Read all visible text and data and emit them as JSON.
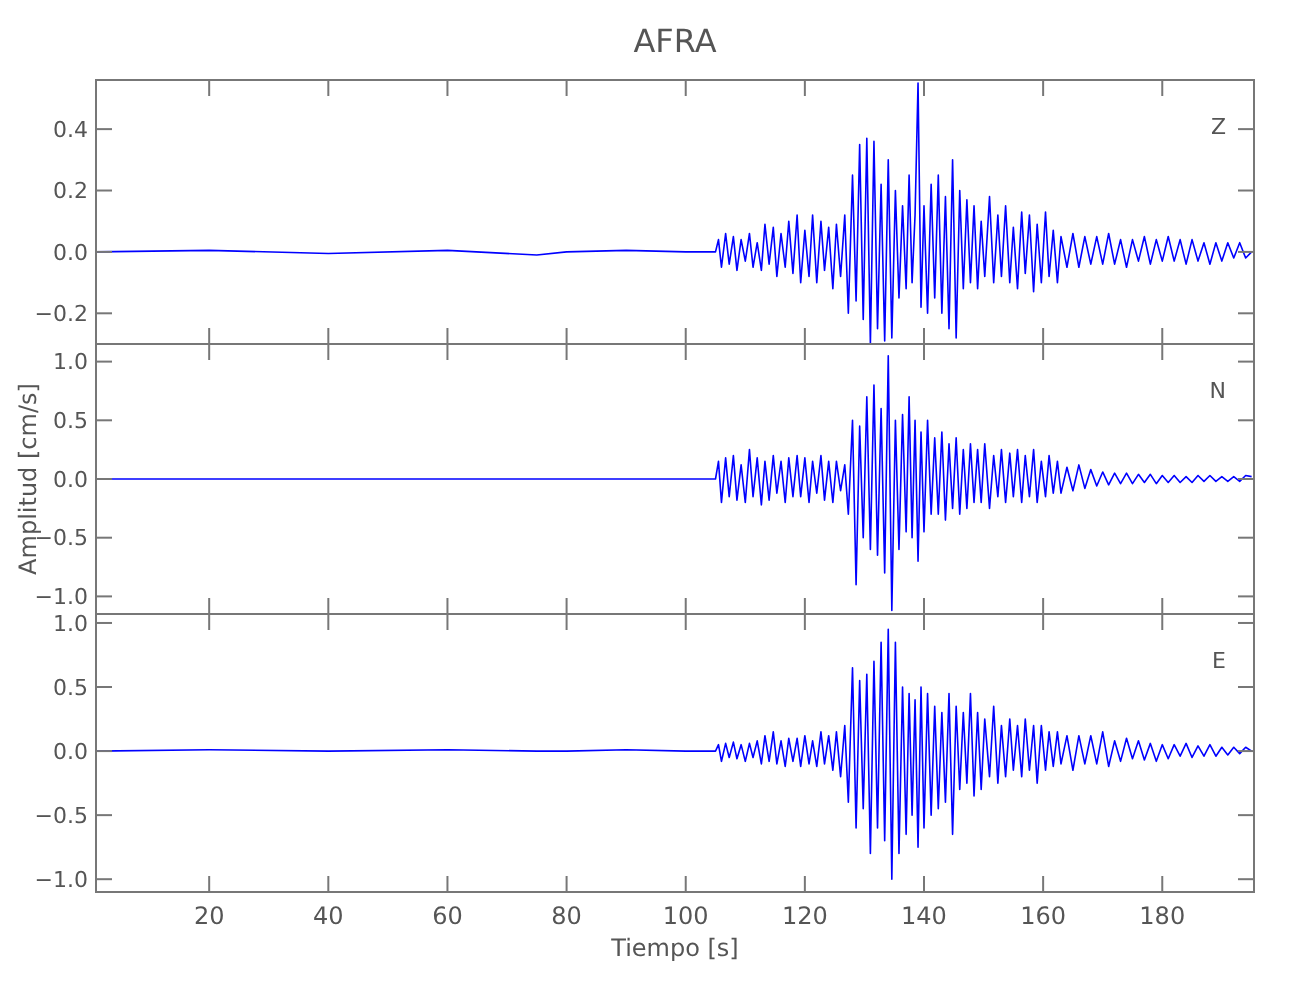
{
  "chart_data": [
    {
      "type": "line",
      "title": "AFRA",
      "annotations": [
        "Z"
      ],
      "tick_labels": "y",
      "grid": false,
      "xlim": [
        1,
        195.4
      ],
      "xticks": [
        20,
        40,
        60,
        80,
        100,
        120,
        140,
        160,
        180
      ],
      "ylim": [
        -0.3,
        0.56
      ],
      "yticks": [
        {
          "value": -0.2,
          "label": "−0.2"
        },
        {
          "value": 0,
          "label": "0.0"
        },
        {
          "value": 0.2,
          "label": "0.2"
        },
        {
          "value": 0.4,
          "label": "0.4"
        }
      ],
      "x": [
        1,
        20,
        40,
        60,
        75,
        80,
        90,
        100,
        105,
        105.5,
        106,
        106.7,
        107.3,
        108,
        108.6,
        109.3,
        110,
        110.7,
        111.3,
        112,
        112.7,
        113.3,
        114,
        114.7,
        115.3,
        116,
        116.7,
        117.3,
        118,
        118.7,
        119.3,
        120,
        120.7,
        121.3,
        122,
        122.7,
        123.3,
        124,
        124.7,
        125.3,
        126,
        126.7,
        127.3,
        128,
        128.6,
        129.2,
        129.8,
        130.4,
        131,
        131.6,
        132.2,
        132.8,
        133.4,
        134,
        134.6,
        135.2,
        135.8,
        136.4,
        137,
        137.5,
        138,
        138.5,
        139,
        139.5,
        140,
        140.6,
        141.2,
        141.8,
        142.4,
        143,
        143.6,
        144.2,
        144.8,
        145.4,
        146,
        146.6,
        147.2,
        147.8,
        148.4,
        149,
        149.6,
        150.2,
        151,
        151.7,
        152.4,
        153,
        153.7,
        154.4,
        155,
        155.7,
        156.4,
        157,
        157.7,
        158.4,
        159,
        159.7,
        160.4,
        161,
        161.7,
        162.4,
        163,
        164,
        165,
        166,
        167,
        168,
        169,
        170,
        171,
        172,
        173,
        174,
        175,
        176,
        177,
        178,
        179,
        180,
        181,
        182,
        183,
        184,
        185,
        186,
        187,
        188,
        189,
        190,
        191,
        192,
        193,
        194,
        195
      ],
      "series": [
        {
          "color": "#0000ff",
          "values": [
            0,
            0.005,
            -0.005,
            0.005,
            -0.01,
            0,
            0.005,
            0,
            0,
            0.04,
            -0.05,
            0.06,
            -0.04,
            0.05,
            -0.06,
            0.04,
            -0.03,
            0.06,
            -0.05,
            0.03,
            -0.06,
            0.09,
            -0.04,
            0.08,
            -0.08,
            0.06,
            -0.05,
            0.1,
            -0.07,
            0.12,
            -0.1,
            0.07,
            -0.08,
            0.12,
            -0.1,
            0.1,
            -0.06,
            0.08,
            -0.12,
            0.09,
            -0.08,
            0.12,
            -0.2,
            0.25,
            -0.16,
            0.35,
            -0.22,
            0.37,
            -0.3,
            0.36,
            -0.25,
            0.22,
            -0.29,
            0.3,
            -0.28,
            0.2,
            -0.15,
            0.15,
            -0.12,
            0.25,
            -0.1,
            0.12,
            0.55,
            -0.18,
            0.15,
            -0.2,
            0.22,
            -0.15,
            0.25,
            -0.2,
            0.18,
            -0.25,
            0.3,
            -0.28,
            0.2,
            -0.12,
            0.17,
            -0.1,
            0.15,
            -0.12,
            0.1,
            -0.08,
            0.18,
            -0.1,
            0.12,
            -0.08,
            0.15,
            -0.1,
            0.08,
            -0.12,
            0.13,
            -0.07,
            0.12,
            -0.13,
            0.09,
            -0.1,
            0.13,
            -0.08,
            0.07,
            -0.1,
            0.05,
            -0.05,
            0.06,
            -0.05,
            0.05,
            -0.04,
            0.05,
            -0.04,
            0.06,
            -0.04,
            0.04,
            -0.05,
            0.04,
            -0.03,
            0.05,
            -0.04,
            0.04,
            -0.03,
            0.05,
            -0.03,
            0.04,
            -0.04,
            0.04,
            -0.03,
            0.03,
            -0.04,
            0.03,
            -0.03,
            0.03,
            -0.02,
            0.03,
            -0.02,
            0
          ]
        }
      ]
    },
    {
      "type": "line",
      "ylabel": "Amplitud [cm/s]",
      "annotations": [
        "N"
      ],
      "tick_labels": "y",
      "grid": false,
      "xlim": [
        1,
        195.4
      ],
      "xticks": [
        20,
        40,
        60,
        80,
        100,
        120,
        140,
        160,
        180
      ],
      "ylim": [
        -1.15,
        1.15
      ],
      "yticks": [
        {
          "value": -1,
          "label": "−1.0"
        },
        {
          "value": -0.5,
          "label": "−0.5"
        },
        {
          "value": 0,
          "label": "0.0"
        },
        {
          "value": 0.5,
          "label": "0.5"
        },
        {
          "value": 1,
          "label": "1.0"
        }
      ],
      "x": [
        1,
        20,
        40,
        60,
        75,
        80,
        90,
        100,
        105,
        105.5,
        106,
        106.7,
        107.3,
        108,
        108.6,
        109.3,
        110,
        110.7,
        111.3,
        112,
        112.7,
        113.3,
        114,
        114.7,
        115.3,
        116,
        116.7,
        117.3,
        118,
        118.7,
        119.3,
        120,
        120.7,
        121.3,
        122,
        122.7,
        123.3,
        124,
        124.7,
        125.3,
        126,
        126.7,
        127.3,
        128,
        128.6,
        129.2,
        129.8,
        130.4,
        131,
        131.6,
        132.2,
        132.8,
        133.4,
        134,
        134.6,
        135.2,
        135.8,
        136.4,
        137,
        137.5,
        138,
        138.5,
        139,
        139.5,
        140,
        140.6,
        141.2,
        141.8,
        142.4,
        143,
        143.6,
        144.2,
        144.8,
        145.4,
        146,
        146.6,
        147.2,
        147.8,
        148.4,
        149,
        149.6,
        150.2,
        151,
        151.7,
        152.4,
        153,
        153.7,
        154.4,
        155,
        155.7,
        156.4,
        157,
        157.7,
        158.4,
        159,
        159.7,
        160.4,
        161,
        161.7,
        162.4,
        163,
        164,
        165,
        166,
        167,
        168,
        169,
        170,
        171,
        172,
        173,
        174,
        175,
        176,
        177,
        178,
        179,
        180,
        181,
        182,
        183,
        184,
        185,
        186,
        187,
        188,
        189,
        190,
        191,
        192,
        193,
        194,
        195
      ],
      "series": [
        {
          "color": "#0000ff",
          "values": [
            0,
            0,
            0,
            0,
            0,
            0,
            0,
            0,
            0,
            0.15,
            -0.2,
            0.18,
            -0.15,
            0.2,
            -0.18,
            0.12,
            -0.2,
            0.25,
            -0.15,
            0.18,
            -0.22,
            0.15,
            -0.18,
            0.2,
            -0.12,
            0.15,
            -0.2,
            0.18,
            -0.15,
            0.2,
            -0.15,
            0.18,
            -0.2,
            0.15,
            -0.12,
            0.2,
            -0.18,
            0.15,
            -0.2,
            0.15,
            -0.1,
            0.12,
            -0.3,
            0.5,
            -0.9,
            0.45,
            -0.5,
            0.7,
            -0.6,
            0.8,
            -0.65,
            0.6,
            -0.8,
            1.05,
            -1.12,
            0.5,
            -0.6,
            0.55,
            -0.45,
            0.7,
            -0.5,
            0.5,
            -0.7,
            0.4,
            -0.45,
            0.5,
            -0.3,
            0.35,
            -0.3,
            0.4,
            -0.35,
            0.3,
            -0.25,
            0.35,
            -0.3,
            0.25,
            -0.25,
            0.3,
            -0.2,
            0.25,
            -0.2,
            0.3,
            -0.25,
            0.2,
            -0.15,
            0.25,
            -0.2,
            0.22,
            -0.15,
            0.25,
            -0.2,
            0.2,
            -0.15,
            0.25,
            -0.2,
            0.15,
            -0.15,
            0.2,
            -0.12,
            0.15,
            -0.12,
            0.1,
            -0.1,
            0.12,
            -0.08,
            0.08,
            -0.06,
            0.06,
            -0.05,
            0.05,
            -0.04,
            0.05,
            -0.04,
            0.04,
            -0.03,
            0.04,
            -0.04,
            0.03,
            -0.03,
            0.03,
            -0.03,
            0.02,
            -0.03,
            0.03,
            -0.02,
            0.03,
            -0.02,
            0.02,
            -0.02,
            0.02,
            -0.02,
            0.03,
            0.02
          ]
        }
      ]
    },
    {
      "type": "line",
      "xlabel": "Tiempo [s]",
      "annotations": [
        "E"
      ],
      "grid": false,
      "xlim": [
        1,
        195.4
      ],
      "xticks": [
        20,
        40,
        60,
        80,
        100,
        120,
        140,
        160,
        180
      ],
      "ylim": [
        -1.1,
        1.07
      ],
      "yticks": [
        {
          "value": -1,
          "label": "−1.0"
        },
        {
          "value": -0.5,
          "label": "−0.5"
        },
        {
          "value": 0,
          "label": "0.0"
        },
        {
          "value": 0.5,
          "label": "0.5"
        },
        {
          "value": 1,
          "label": "1.0"
        }
      ],
      "x": [
        1,
        20,
        40,
        60,
        75,
        80,
        90,
        100,
        105,
        105.5,
        106,
        106.7,
        107.3,
        108,
        108.6,
        109.3,
        110,
        110.7,
        111.3,
        112,
        112.7,
        113.3,
        114,
        114.7,
        115.3,
        116,
        116.7,
        117.3,
        118,
        118.7,
        119.3,
        120,
        120.7,
        121.3,
        122,
        122.7,
        123.3,
        124,
        124.7,
        125.3,
        126,
        126.7,
        127.3,
        128,
        128.6,
        129.2,
        129.8,
        130.4,
        131,
        131.6,
        132.2,
        132.8,
        133.4,
        134,
        134.6,
        135.2,
        135.8,
        136.4,
        137,
        137.5,
        138,
        138.5,
        139,
        139.5,
        140,
        140.6,
        141.2,
        141.8,
        142.4,
        143,
        143.6,
        144.2,
        144.8,
        145.4,
        146,
        146.6,
        147.2,
        147.8,
        148.4,
        149,
        149.6,
        150.2,
        151,
        151.7,
        152.4,
        153,
        153.7,
        154.4,
        155,
        155.7,
        156.4,
        157,
        157.7,
        158.4,
        159,
        159.7,
        160.4,
        161,
        161.7,
        162.4,
        163,
        164,
        165,
        166,
        167,
        168,
        169,
        170,
        171,
        172,
        173,
        174,
        175,
        176,
        177,
        178,
        179,
        180,
        181,
        182,
        183,
        184,
        185,
        186,
        187,
        188,
        189,
        190,
        191,
        192,
        193,
        194,
        195
      ],
      "series": [
        {
          "color": "#0000ff",
          "values": [
            0,
            0.01,
            0,
            0.01,
            0,
            0,
            0.01,
            0,
            0,
            0.05,
            -0.08,
            0.06,
            -0.05,
            0.07,
            -0.06,
            0.05,
            -0.08,
            0.06,
            -0.05,
            0.08,
            -0.1,
            0.12,
            -0.08,
            0.15,
            -0.1,
            0.08,
            -0.12,
            0.1,
            -0.08,
            0.1,
            -0.12,
            0.12,
            -0.1,
            0.08,
            -0.12,
            0.15,
            -0.1,
            0.12,
            -0.15,
            0.15,
            -0.2,
            0.2,
            -0.4,
            0.65,
            -0.6,
            0.55,
            -0.45,
            0.6,
            -0.8,
            0.7,
            -0.6,
            0.85,
            -0.7,
            0.95,
            -1.0,
            0.85,
            -0.8,
            0.5,
            -0.65,
            0.45,
            -0.5,
            0.4,
            -0.75,
            0.5,
            -0.6,
            0.45,
            -0.5,
            0.35,
            -0.45,
            0.3,
            -0.4,
            0.45,
            -0.65,
            0.35,
            -0.3,
            0.3,
            -0.25,
            0.45,
            -0.35,
            0.3,
            -0.3,
            0.25,
            -0.2,
            0.35,
            -0.25,
            0.2,
            -0.2,
            0.25,
            -0.15,
            0.2,
            -0.2,
            0.25,
            -0.15,
            0.2,
            -0.25,
            0.2,
            -0.15,
            0.15,
            -0.12,
            0.15,
            -0.1,
            0.12,
            -0.15,
            0.12,
            -0.1,
            0.12,
            -0.1,
            0.15,
            -0.12,
            0.08,
            -0.08,
            0.1,
            -0.06,
            0.08,
            -0.07,
            0.06,
            -0.08,
            0.05,
            -0.06,
            0.05,
            -0.04,
            0.06,
            -0.05,
            0.04,
            -0.04,
            0.05,
            -0.04,
            0.03,
            -0.03,
            0.03,
            -0.02,
            0.03,
            0
          ]
        }
      ]
    }
  ]
}
